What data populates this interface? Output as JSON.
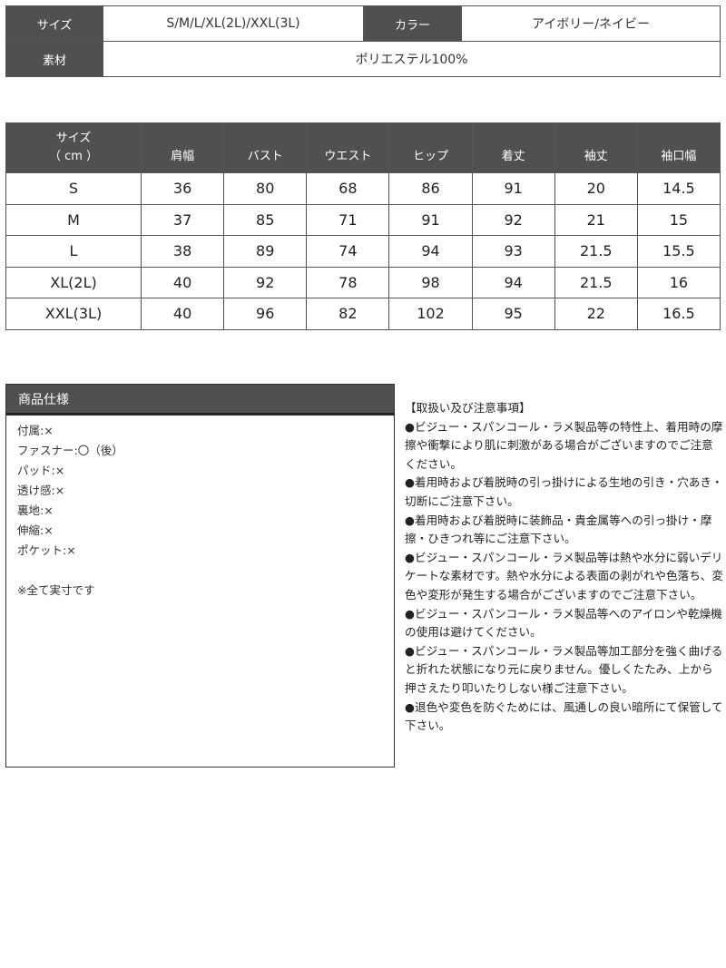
{
  "info": {
    "size_label": "サイズ",
    "size_value": "S/M/L/XL(2L)/XXL(3L)",
    "color_label": "カラー",
    "color_value": "アイボリー/ネイビー",
    "material_label": "素材",
    "material_value": "ポリエステル100%"
  },
  "size_table": {
    "header_line1": "サイズ",
    "header_line2": "（ cm ）",
    "columns": [
      "肩幅",
      "バスト",
      "ウエスト",
      "ヒップ",
      "着丈",
      "袖丈",
      "袖口幅"
    ],
    "rows": [
      [
        "S",
        "36",
        "80",
        "68",
        "86",
        "91",
        "20",
        "14.5"
      ],
      [
        "M",
        "37",
        "85",
        "71",
        "91",
        "92",
        "21",
        "15"
      ],
      [
        "L",
        "38",
        "89",
        "74",
        "94",
        "93",
        "21.5",
        "15.5"
      ],
      [
        "XL(2L)",
        "40",
        "92",
        "78",
        "98",
        "94",
        "21.5",
        "16"
      ],
      [
        "XXL(3L)",
        "40",
        "96",
        "82",
        "102",
        "95",
        "22",
        "16.5"
      ]
    ]
  },
  "spec": {
    "title": "商品仕様",
    "items": [
      "付属:×",
      "ファスナー:〇（後）",
      "パッド:×",
      "透け感:×",
      "裏地:×",
      "伸縮:×",
      "ポケット:×"
    ],
    "note": "※全て実寸です"
  },
  "notes": {
    "title": "【取扱い及び注意事項】",
    "items": [
      "●ビジュー・スパンコール・ラメ製品等の特性上、着用時の摩擦や衝撃により肌に刺激がある場合がございますのでご注意ください。",
      "●着用時および着脱時の引っ掛けによる生地の引き・穴あき・切断にご注意下さい。",
      "●着用時および着脱時に装飾品・貴金属等への引っ掛け・摩擦・ひきつれ等にご注意下さい。",
      "●ビジュー・スパンコール・ラメ製品等は熱や水分に弱いデリケートな素材です。熱や水分による表面の剥がれや色落ち、変色や変形が発生する場合がございますのでご注意下さい。",
      "●ビジュー・スパンコール・ラメ製品等へのアイロンや乾燥機の使用は避けてください。",
      "●ビジュー・スパンコール・ラメ製品等加工部分を強く曲げると折れた状態になり元に戻りません。優しくたたみ、上から押さえたり叩いたりしない様ご注意下さい。",
      "●退色や変色を防ぐためには、風通しの良い暗所にて保管して下さい。"
    ]
  }
}
